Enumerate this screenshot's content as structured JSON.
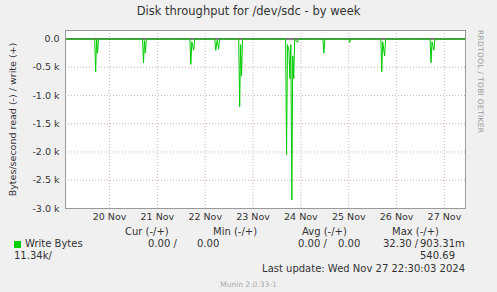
{
  "chart_data": {
    "type": "line",
    "title": "Disk throughput for /dev/sdc - by week",
    "y_label": "Bytes/second read (-) / write (+)",
    "x": [
      19.58,
      20.19,
      20.21,
      20.23,
      20.25,
      20.27,
      21.19,
      21.21,
      21.23,
      21.25,
      21.27,
      22.18,
      22.2,
      22.22,
      22.26,
      22.28,
      22.7,
      22.72,
      22.75,
      22.78,
      22.8,
      23.2,
      23.22,
      23.24,
      23.26,
      23.28,
      24.18,
      24.2,
      24.22,
      24.25,
      24.27,
      24.29,
      24.31,
      24.33,
      24.35,
      24.37,
      24.43,
      24.45,
      24.96,
      24.98,
      25.0,
      25.5,
      25.52,
      25.54,
      26.17,
      26.19,
      26.21,
      26.25,
      26.27,
      27.2,
      27.22,
      27.24,
      27.28,
      27.3,
      27.94
    ],
    "series": [
      {
        "name": "Write Bytes",
        "color": "#00cc00",
        "values": [
          0,
          0,
          -580,
          0,
          -250,
          0,
          0,
          -420,
          -30,
          -250,
          0,
          0,
          -450,
          -50,
          -200,
          0,
          0,
          -200,
          -20,
          -180,
          0,
          0,
          -1200,
          -100,
          -650,
          0,
          0,
          -2050,
          -100,
          -200,
          -700,
          -100,
          -2850,
          -300,
          -700,
          0,
          -60,
          0,
          0,
          -250,
          0,
          0,
          -60,
          0,
          0,
          -580,
          -50,
          -300,
          0,
          0,
          -420,
          -50,
          -200,
          0,
          0
        ]
      }
    ],
    "xlim": [
      19.58,
      27.94
    ],
    "xticks": [
      {
        "value": 20.5,
        "label": "20 Nov"
      },
      {
        "value": 21.5,
        "label": "21 Nov"
      },
      {
        "value": 22.5,
        "label": "22 Nov"
      },
      {
        "value": 23.5,
        "label": "23 Nov"
      },
      {
        "value": 24.5,
        "label": "24 Nov"
      },
      {
        "value": 25.5,
        "label": "25 Nov"
      },
      {
        "value": 26.5,
        "label": "26 Nov"
      },
      {
        "value": 27.5,
        "label": "27 Nov"
      }
    ],
    "ylim": [
      -3000,
      150
    ],
    "yticks": [
      {
        "value": 0,
        "label": "0.0"
      },
      {
        "value": -500,
        "label": "-0.5 k"
      },
      {
        "value": -1000,
        "label": "-1.0 k"
      },
      {
        "value": -1500,
        "label": "-1.5 k"
      },
      {
        "value": -2000,
        "label": "-2.0 k"
      },
      {
        "value": -2500,
        "label": "-2.5 k"
      },
      {
        "value": -3000,
        "label": "-3.0 k"
      }
    ],
    "grid": true,
    "summary": {
      "headers": [
        "Cur (-/+)",
        "Min (-/+)",
        "Avg (-/+)",
        "Max (-/+)"
      ],
      "values": [
        "0.00 /",
        "0.00",
        "0.00 /",
        "0.00",
        "32.30 /",
        "903.31m",
        "11.34k/",
        "540.69"
      ]
    },
    "last_update": "Last update: Wed Nov 27 22:30:03 2024",
    "watermark": "RRDTOOL / TOBI OETIKER",
    "footer": "Munin 2.0.33-1"
  }
}
